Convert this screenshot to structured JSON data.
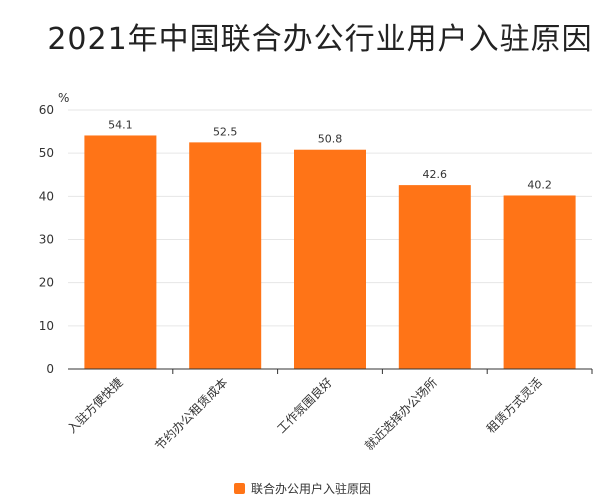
{
  "chart_data": {
    "type": "bar",
    "title": "2021年中国联合办公行业用户入驻原因",
    "ylabel": "%",
    "xlabel": "",
    "ylim": [
      0,
      60
    ],
    "yticks": [
      0,
      10,
      20,
      30,
      40,
      50,
      60
    ],
    "grid": true,
    "legend_position": "bottom",
    "categories": [
      "入驻方便快捷",
      "节约办公租赁成本",
      "工作氛围良好",
      "就近选择办公场所",
      "租赁方式灵活"
    ],
    "series": [
      {
        "name": "联合办公用户入驻原因",
        "values": [
          54.1,
          52.5,
          50.8,
          42.6,
          40.2
        ],
        "color": "#FF7417"
      }
    ]
  }
}
